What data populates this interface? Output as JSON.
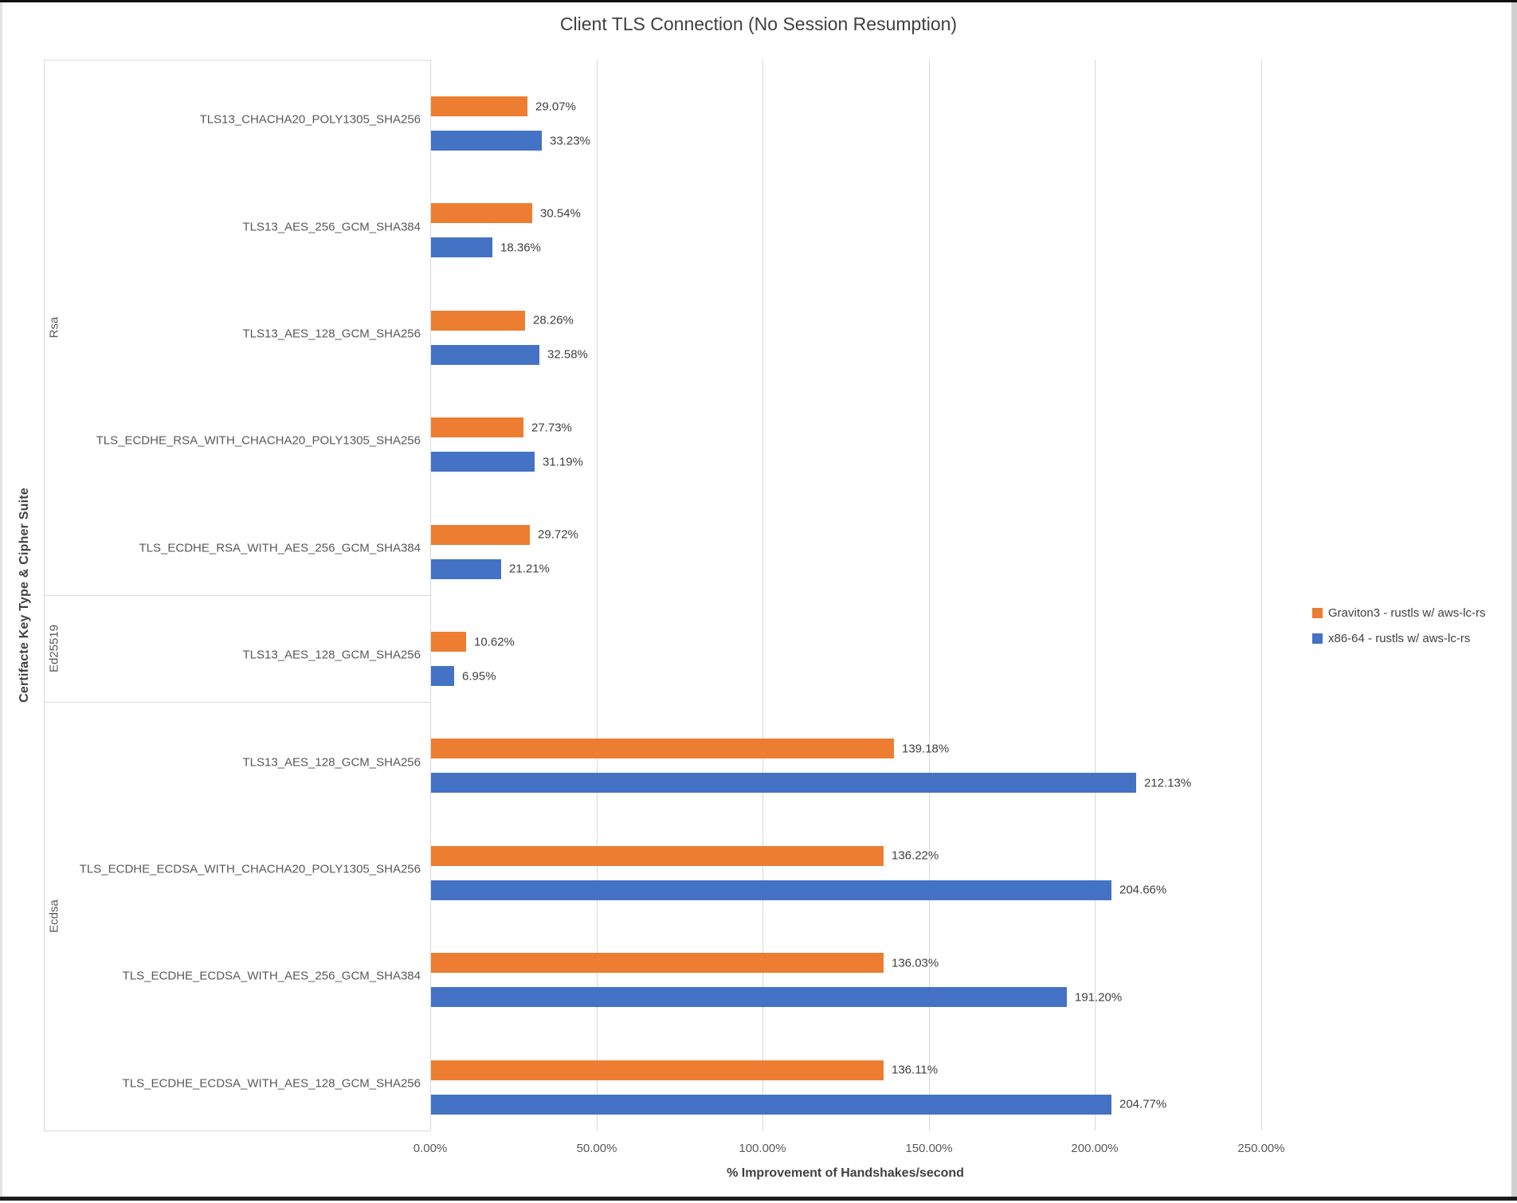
{
  "title": "Client TLS Connection (No Session Resumption)",
  "legend": {
    "items": [
      {
        "label": "Graviton3 - rustls w/ aws-lc-rs",
        "color": "#ED7D31",
        "series_key": "graviton3"
      },
      {
        "label": "x86-64 - rustls w/ aws-lc-rs",
        "color": "#4472C4",
        "series_key": "x86_64"
      }
    ]
  },
  "colors": {
    "graviton3": "#ED7D31",
    "x86_64": "#4472C4",
    "gridline": "#d9d9d9",
    "title_text": "#404040",
    "axis_text": "#595959",
    "data_label_text": "#404040"
  },
  "chart_data": {
    "type": "bar",
    "orientation": "horizontal",
    "title": "Client TLS Connection (No Session Resumption)",
    "xlabel": "% Improvement of Handshakes/second",
    "ylabel": "Certifacte Key Type & Cipher Suite",
    "xlim": [
      0,
      250
    ],
    "x_ticks": [
      "0.00%",
      "50.00%",
      "100.00%",
      "150.00%",
      "200.00%",
      "250.00%"
    ],
    "grid": true,
    "legend_position": "right",
    "series_names": [
      "Graviton3 - rustls w/ aws-lc-rs",
      "x86-64 - rustls w/ aws-lc-rs"
    ],
    "groups": [
      {
        "key_type": "Rsa",
        "rows": [
          {
            "cipher": "TLS13_CHACHA20_POLY1305_SHA256",
            "values": {
              "graviton3": 29.07,
              "x86_64": 33.23
            },
            "labels": {
              "graviton3": "29.07%",
              "x86_64": "33.23%"
            }
          },
          {
            "cipher": "TLS13_AES_256_GCM_SHA384",
            "values": {
              "graviton3": 30.54,
              "x86_64": 18.36
            },
            "labels": {
              "graviton3": "30.54%",
              "x86_64": "18.36%"
            }
          },
          {
            "cipher": "TLS13_AES_128_GCM_SHA256",
            "values": {
              "graviton3": 28.26,
              "x86_64": 32.58
            },
            "labels": {
              "graviton3": "28.26%",
              "x86_64": "32.58%"
            }
          },
          {
            "cipher": "TLS_ECDHE_RSA_WITH_CHACHA20_POLY1305_SHA256",
            "values": {
              "graviton3": 27.73,
              "x86_64": 31.19
            },
            "labels": {
              "graviton3": "27.73%",
              "x86_64": "31.19%"
            }
          },
          {
            "cipher": "TLS_ECDHE_RSA_WITH_AES_256_GCM_SHA384",
            "values": {
              "graviton3": 29.72,
              "x86_64": 21.21
            },
            "labels": {
              "graviton3": "29.72%",
              "x86_64": "21.21%"
            }
          }
        ]
      },
      {
        "key_type": "Ed25519",
        "rows": [
          {
            "cipher": "TLS13_AES_128_GCM_SHA256",
            "values": {
              "graviton3": 10.62,
              "x86_64": 6.95
            },
            "labels": {
              "graviton3": "10.62%",
              "x86_64": "6.95%"
            }
          }
        ]
      },
      {
        "key_type": "Ecdsa",
        "rows": [
          {
            "cipher": "TLS13_AES_128_GCM_SHA256",
            "values": {
              "graviton3": 139.18,
              "x86_64": 212.13
            },
            "labels": {
              "graviton3": "139.18%",
              "x86_64": "212.13%"
            }
          },
          {
            "cipher": "TLS_ECDHE_ECDSA_WITH_CHACHA20_POLY1305_SHA256",
            "values": {
              "graviton3": 136.22,
              "x86_64": 204.66
            },
            "labels": {
              "graviton3": "136.22%",
              "x86_64": "204.66%"
            }
          },
          {
            "cipher": "TLS_ECDHE_ECDSA_WITH_AES_256_GCM_SHA384",
            "values": {
              "graviton3": 136.03,
              "x86_64": 191.2
            },
            "labels": {
              "graviton3": "136.03%",
              "x86_64": "191.20%"
            }
          },
          {
            "cipher": "TLS_ECDHE_ECDSA_WITH_AES_128_GCM_SHA256",
            "values": {
              "graviton3": 136.11,
              "x86_64": 204.77
            },
            "labels": {
              "graviton3": "136.11%",
              "x86_64": "204.77%"
            }
          }
        ]
      }
    ]
  }
}
